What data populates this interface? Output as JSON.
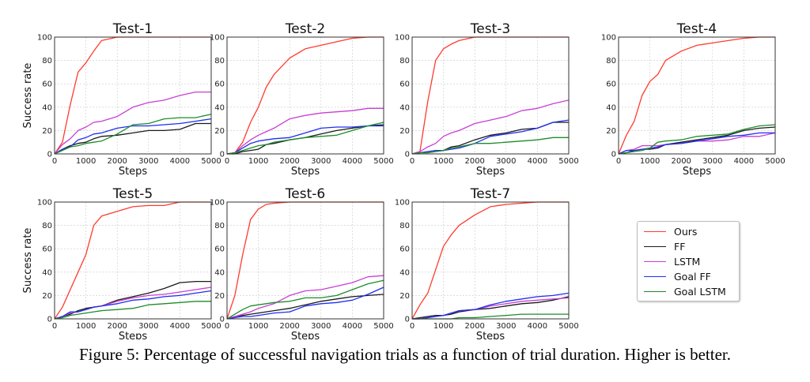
{
  "chart_data": {
    "type": "line",
    "caption": "Figure 5: Percentage of successful navigation trials as a function of trial duration. Higher is better.",
    "xlabel": "Steps",
    "ylabel": "Success rate",
    "xlim": [
      0,
      5000
    ],
    "ylim": [
      0,
      100
    ],
    "xticks": [
      "0",
      "1000",
      "2000",
      "3000",
      "4000",
      "5000"
    ],
    "yticks": [
      "0",
      "20",
      "40",
      "60",
      "80",
      "100"
    ],
    "grid": true,
    "legend_placement": "right",
    "series_meta": [
      {
        "name": "Ours",
        "color": "#ff3b2f"
      },
      {
        "name": "FF",
        "color": "#1a1a1a"
      },
      {
        "name": "LSTM",
        "color": "#c83fd4"
      },
      {
        "name": "Goal FF",
        "color": "#1f2ef0"
      },
      {
        "name": "Goal LSTM",
        "color": "#1e8c2a"
      }
    ],
    "panels": [
      {
        "title": "Test-1",
        "x": [
          0,
          250,
          500,
          750,
          1000,
          1250,
          1500,
          2000,
          2500,
          3000,
          3500,
          4000,
          4500,
          5000
        ],
        "series": [
          {
            "name": "Ours",
            "values": [
              0,
              10,
              42,
              70,
              78,
              88,
              97,
              100,
              100,
              100,
              100,
              100,
              100,
              100
            ]
          },
          {
            "name": "FF",
            "values": [
              0,
              4,
              7,
              9,
              10,
              13,
              15,
              16,
              18,
              20,
              20,
              21,
              26,
              26
            ]
          },
          {
            "name": "LSTM",
            "values": [
              0,
              8,
              13,
              20,
              23,
              27,
              28,
              32,
              40,
              44,
              46,
              50,
              53,
              53
            ]
          },
          {
            "name": "Goal FF",
            "values": [
              0,
              4,
              6,
              12,
              14,
              17,
              18,
              22,
              24,
              24,
              25,
              26,
              28,
              30
            ]
          },
          {
            "name": "Goal LSTM",
            "values": [
              0,
              3,
              6,
              7,
              9,
              10,
              11,
              17,
              25,
              26,
              30,
              31,
              31,
              34
            ]
          }
        ]
      },
      {
        "title": "Test-2",
        "x": [
          0,
          250,
          500,
          750,
          1000,
          1250,
          1500,
          2000,
          2500,
          3000,
          3500,
          4000,
          4500,
          5000
        ],
        "series": [
          {
            "name": "Ours",
            "values": [
              0,
              1,
              10,
              27,
              40,
              57,
              68,
              82,
              90,
              93,
              96,
              99,
              100,
              100
            ]
          },
          {
            "name": "FF",
            "values": [
              0,
              0,
              2,
              3,
              4,
              8,
              9,
              12,
              14,
              17,
              20,
              22,
              24,
              25
            ]
          },
          {
            "name": "LSTM",
            "values": [
              0,
              1,
              7,
              12,
              16,
              19,
              22,
              30,
              33,
              35,
              36,
              37,
              39,
              39
            ]
          },
          {
            "name": "Goal FF",
            "values": [
              0,
              1,
              5,
              9,
              11,
              12,
              13,
              14,
              18,
              22,
              23,
              23,
              24,
              24
            ]
          },
          {
            "name": "Goal LSTM",
            "values": [
              0,
              1,
              3,
              5,
              7,
              8,
              10,
              12,
              14,
              15,
              16,
              20,
              24,
              27
            ]
          }
        ]
      },
      {
        "title": "Test-3",
        "x": [
          0,
          250,
          500,
          750,
          1000,
          1250,
          1500,
          2000,
          2500,
          3000,
          3500,
          4000,
          4500,
          5000
        ],
        "series": [
          {
            "name": "Ours",
            "values": [
              0,
              2,
              45,
              80,
              90,
              94,
              97,
              100,
              100,
              100,
              100,
              100,
              100,
              100
            ]
          },
          {
            "name": "FF",
            "values": [
              0,
              1,
              1,
              2,
              3,
              6,
              7,
              12,
              16,
              18,
              21,
              22,
              27,
              27
            ]
          },
          {
            "name": "LSTM",
            "values": [
              0,
              2,
              6,
              9,
              15,
              18,
              20,
              26,
              29,
              32,
              37,
              39,
              43,
              46
            ]
          },
          {
            "name": "Goal FF",
            "values": [
              0,
              1,
              2,
              3,
              3,
              4,
              5,
              9,
              15,
              17,
              19,
              22,
              27,
              29
            ]
          },
          {
            "name": "Goal LSTM",
            "values": [
              0,
              1,
              1,
              2,
              3,
              5,
              6,
              9,
              9,
              10,
              11,
              12,
              14,
              14
            ]
          }
        ]
      },
      {
        "title": "Test-4",
        "x": [
          0,
          250,
          500,
          750,
          1000,
          1250,
          1500,
          2000,
          2500,
          3000,
          3500,
          4000,
          4500,
          5000
        ],
        "series": [
          {
            "name": "Ours",
            "values": [
              0,
              16,
              28,
              50,
              62,
              68,
              80,
              88,
              93,
              95,
              97,
              99,
              100,
              100
            ]
          },
          {
            "name": "FF",
            "values": [
              0,
              1,
              3,
              4,
              4,
              5,
              8,
              10,
              12,
              14,
              16,
              20,
              22,
              23
            ]
          },
          {
            "name": "LSTM",
            "values": [
              0,
              3,
              4,
              7,
              7,
              7,
              8,
              9,
              11,
              11,
              12,
              15,
              15,
              18
            ]
          },
          {
            "name": "Goal FF",
            "values": [
              0,
              3,
              3,
              4,
              5,
              6,
              8,
              9,
              11,
              13,
              15,
              16,
              18,
              18
            ]
          },
          {
            "name": "Goal LSTM",
            "values": [
              0,
              1,
              2,
              3,
              5,
              10,
              11,
              12,
              15,
              16,
              17,
              21,
              24,
              25
            ]
          }
        ]
      },
      {
        "title": "Test-5",
        "x": [
          0,
          250,
          500,
          750,
          1000,
          1250,
          1500,
          2000,
          2500,
          3000,
          3500,
          4000,
          4500,
          5000
        ],
        "series": [
          {
            "name": "Ours",
            "values": [
              0,
              10,
              25,
              40,
              55,
              80,
              88,
              92,
              96,
              97,
              97,
              100,
              100,
              100
            ]
          },
          {
            "name": "FF",
            "values": [
              0,
              2,
              4,
              7,
              9,
              10,
              11,
              16,
              19,
              22,
              26,
              31,
              32,
              32
            ]
          },
          {
            "name": "LSTM",
            "values": [
              0,
              2,
              5,
              6,
              8,
              10,
              11,
              15,
              18,
              20,
              21,
              23,
              25,
              27
            ]
          },
          {
            "name": "Goal FF",
            "values": [
              0,
              2,
              6,
              6,
              8,
              10,
              11,
              13,
              16,
              17,
              19,
              20,
              22,
              24
            ]
          },
          {
            "name": "Goal LSTM",
            "values": [
              0,
              1,
              3,
              4,
              5,
              6,
              7,
              8,
              9,
              12,
              13,
              14,
              15,
              15
            ]
          }
        ]
      },
      {
        "title": "Test-6",
        "x": [
          0,
          250,
          500,
          750,
          1000,
          1250,
          1500,
          2000,
          2500,
          3000,
          3500,
          4000,
          4500,
          5000
        ],
        "series": [
          {
            "name": "Ours",
            "values": [
              0,
              20,
              55,
              85,
              94,
              98,
              99,
              100,
              100,
              100,
              100,
              100,
              100,
              100
            ]
          },
          {
            "name": "FF",
            "values": [
              0,
              2,
              3,
              4,
              5,
              6,
              7,
              9,
              12,
              15,
              17,
              19,
              20,
              21
            ]
          },
          {
            "name": "LSTM",
            "values": [
              0,
              2,
              4,
              6,
              9,
              11,
              13,
              20,
              24,
              25,
              28,
              31,
              36,
              37
            ]
          },
          {
            "name": "Goal FF",
            "values": [
              0,
              1,
              2,
              2,
              3,
              4,
              5,
              6,
              11,
              13,
              14,
              16,
              21,
              27
            ]
          },
          {
            "name": "Goal LSTM",
            "values": [
              0,
              4,
              8,
              11,
              12,
              13,
              14,
              15,
              18,
              18,
              20,
              25,
              30,
              33
            ]
          }
        ]
      },
      {
        "title": "Test-7",
        "x": [
          0,
          250,
          500,
          750,
          1000,
          1250,
          1500,
          2000,
          2500,
          3000,
          3500,
          4000,
          4500,
          5000
        ],
        "series": [
          {
            "name": "Ours",
            "values": [
              0,
              12,
              22,
              42,
              62,
              72,
              80,
              89,
              96,
              98,
              99,
              100,
              100,
              100
            ]
          },
          {
            "name": "FF",
            "values": [
              0,
              1,
              2,
              3,
              3,
              4,
              6,
              8,
              9,
              11,
              13,
              14,
              16,
              19
            ]
          },
          {
            "name": "LSTM",
            "values": [
              0,
              0,
              1,
              2,
              3,
              5,
              7,
              8,
              11,
              13,
              15,
              16,
              17,
              18
            ]
          },
          {
            "name": "Goal FF",
            "values": [
              0,
              0,
              1,
              2,
              3,
              5,
              7,
              8,
              12,
              15,
              17,
              19,
              20,
              22
            ]
          },
          {
            "name": "Goal LSTM",
            "values": [
              0,
              0,
              0,
              0,
              0,
              0,
              1,
              1,
              2,
              3,
              4,
              4,
              4,
              4
            ]
          }
        ]
      }
    ]
  }
}
